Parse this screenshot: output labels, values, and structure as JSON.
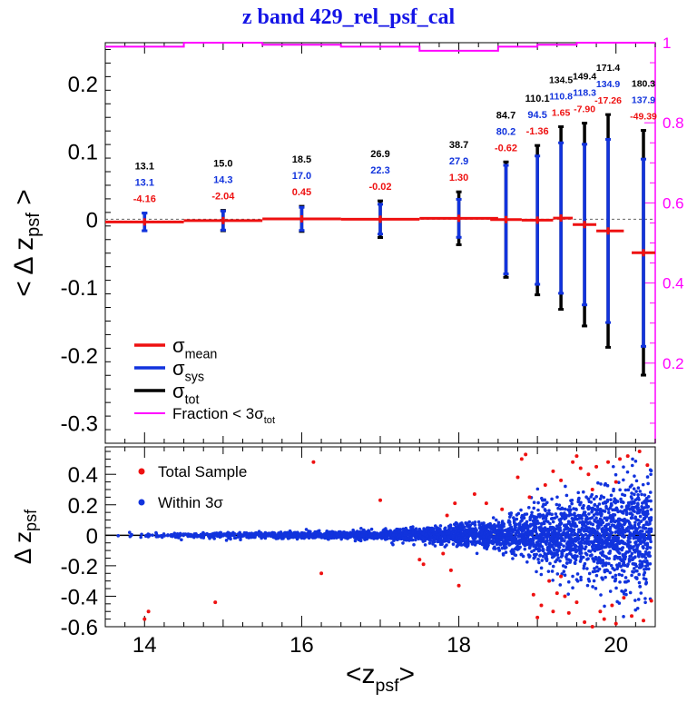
{
  "title": "z band 429_rel_psf_cal",
  "colors": {
    "mean": "#ee1111",
    "sys": "#1133dd",
    "tot": "#000000",
    "fraction": "#ff00ff",
    "title": "#1414e6"
  },
  "chart_data": [
    {
      "type": "errorbar",
      "panel": "top",
      "ylabel": {
        "main": "< Δ z",
        "sub": "psf",
        "tail": " >"
      },
      "xlim": [
        13.5,
        20.5
      ],
      "ylim": [
        -0.33,
        0.26
      ],
      "yticks": [
        0.2,
        0.1,
        0,
        -0.1,
        -0.2,
        -0.3
      ],
      "ytick_labels": [
        "0.2",
        "0.1",
        "0",
        "-0.1",
        "-0.2",
        "-0.3"
      ],
      "right_axis": {
        "ylim": [
          0,
          1
        ],
        "ticks": [
          0.2,
          0.4,
          0.6,
          0.8,
          1.0
        ],
        "tick_labels": [
          "0.2",
          "0.4",
          "0.6",
          "0.8",
          "1"
        ]
      },
      "bins": [
        {
          "x": 14.0,
          "xlo": 13.5,
          "xhi": 14.5,
          "y": -0.004,
          "sigma_tot": 0.013,
          "sigma_sys": 0.013,
          "labels": [
            "13.1",
            "13.1",
            "-4.16"
          ]
        },
        {
          "x": 15.0,
          "xlo": 14.5,
          "xhi": 15.5,
          "y": -0.002,
          "sigma_tot": 0.015,
          "sigma_sys": 0.014,
          "labels": [
            "15.0",
            "14.3",
            "-2.04"
          ]
        },
        {
          "x": 16.0,
          "xlo": 15.5,
          "xhi": 16.5,
          "y": 0.0005,
          "sigma_tot": 0.0185,
          "sigma_sys": 0.017,
          "labels": [
            "18.5",
            "17.0",
            "0.45"
          ]
        },
        {
          "x": 17.0,
          "xlo": 16.5,
          "xhi": 17.5,
          "y": 0.0,
          "sigma_tot": 0.027,
          "sigma_sys": 0.022,
          "labels": [
            "26.9",
            "22.3",
            "-0.02"
          ]
        },
        {
          "x": 18.0,
          "xlo": 17.5,
          "xhi": 18.5,
          "y": 0.0013,
          "sigma_tot": 0.039,
          "sigma_sys": 0.028,
          "labels": [
            "38.7",
            "27.9",
            "1.30"
          ]
        },
        {
          "x": 18.6,
          "xlo": 18.4,
          "xhi": 18.8,
          "y": -0.0006,
          "sigma_tot": 0.085,
          "sigma_sys": 0.08,
          "labels": [
            "84.7",
            "80.2",
            "-0.62"
          ]
        },
        {
          "x": 19.0,
          "xlo": 18.8,
          "xhi": 19.2,
          "y": -0.0014,
          "sigma_tot": 0.11,
          "sigma_sys": 0.0945,
          "labels": [
            "110.1",
            "94.5",
            "-1.36"
          ]
        },
        {
          "x": 19.3,
          "xlo": 19.2,
          "xhi": 19.45,
          "y": 0.0017,
          "sigma_tot": 0.1345,
          "sigma_sys": 0.1108,
          "labels": [
            "134.5",
            "110.8",
            "1.65"
          ]
        },
        {
          "x": 19.6,
          "xlo": 19.45,
          "xhi": 19.75,
          "y": -0.0079,
          "sigma_tot": 0.1494,
          "sigma_sys": 0.1183,
          "labels": [
            "149.4",
            "118.3",
            "-7.90"
          ]
        },
        {
          "x": 19.9,
          "xlo": 19.75,
          "xhi": 20.1,
          "y": -0.0173,
          "sigma_tot": 0.1714,
          "sigma_sys": 0.1349,
          "labels": [
            "171.4",
            "134.9",
            "-17.26"
          ]
        },
        {
          "x": 20.35,
          "xlo": 20.2,
          "xhi": 20.5,
          "y": -0.0494,
          "sigma_tot": 0.1803,
          "sigma_sys": 0.1379,
          "labels": [
            "180.3",
            "137.9",
            "-49.39"
          ]
        }
      ],
      "fraction_series": {
        "name": "Fraction < 3σtot",
        "steps": [
          {
            "xlo": 13.5,
            "xhi": 14.5,
            "y": 0.99
          },
          {
            "xlo": 14.5,
            "xhi": 15.5,
            "y": 1.0
          },
          {
            "xlo": 15.5,
            "xhi": 16.5,
            "y": 0.995
          },
          {
            "xlo": 16.5,
            "xhi": 17.5,
            "y": 0.99
          },
          {
            "xlo": 17.5,
            "xhi": 18.5,
            "y": 0.98
          },
          {
            "xlo": 18.5,
            "xhi": 19.0,
            "y": 0.99
          },
          {
            "xlo": 19.0,
            "xhi": 19.5,
            "y": 0.995
          },
          {
            "xlo": 19.5,
            "xhi": 20.0,
            "y": 1.0
          },
          {
            "xlo": 20.0,
            "xhi": 20.5,
            "y": 1.0
          }
        ]
      },
      "legend": [
        {
          "symbol": "σ",
          "sub": "mean",
          "text": "",
          "color": "#ee1111"
        },
        {
          "symbol": "σ",
          "sub": "sys",
          "text": "",
          "color": "#1133dd"
        },
        {
          "symbol": "σ",
          "sub": "tot",
          "text": "",
          "color": "#000000"
        },
        {
          "symbol": "",
          "sub": "tot",
          "text": "Fraction < 3σ",
          "color": "#ff00ff"
        }
      ]
    },
    {
      "type": "scatter",
      "panel": "bottom",
      "ylabel": {
        "main": "Δ z",
        "sub": "psf"
      },
      "xlabel": {
        "main": "<z",
        "sub": "psf",
        "tail": ">"
      },
      "xlim": [
        13.5,
        20.5
      ],
      "ylim": [
        -0.6,
        0.58
      ],
      "xticks": [
        14,
        16,
        18,
        20
      ],
      "xtick_labels": [
        "14",
        "16",
        "18",
        "20"
      ],
      "yticks": [
        0.4,
        0.2,
        0,
        -0.2,
        -0.4,
        -0.6
      ],
      "ytick_labels": [
        "0.4",
        "0.2",
        "0",
        "-0.2",
        "-0.4",
        "-0.6"
      ],
      "series": [
        {
          "name": "Total Sample",
          "color": "#ee1111"
        },
        {
          "name": "Within 3σ",
          "color": "#1133dd"
        }
      ],
      "outliers": [
        [
          14.05,
          -0.5
        ],
        [
          14.0,
          -0.55
        ],
        [
          14.9,
          -0.44
        ],
        [
          16.15,
          0.48
        ],
        [
          16.25,
          -0.25
        ],
        [
          17.0,
          0.23
        ],
        [
          17.5,
          -0.16
        ],
        [
          17.55,
          -0.19
        ],
        [
          17.8,
          -0.12
        ],
        [
          17.85,
          0.13
        ],
        [
          17.9,
          -0.23
        ],
        [
          18.0,
          -0.33
        ],
        [
          17.95,
          0.21
        ],
        [
          18.2,
          0.27
        ],
        [
          18.35,
          0.21
        ],
        [
          18.55,
          0.17
        ],
        [
          18.75,
          0.38
        ],
        [
          18.8,
          0.5
        ],
        [
          18.85,
          0.53
        ],
        [
          18.9,
          0.25
        ],
        [
          18.95,
          -0.39
        ],
        [
          19.0,
          -0.54
        ],
        [
          19.05,
          -0.46
        ],
        [
          19.1,
          0.33
        ],
        [
          19.15,
          -0.3
        ],
        [
          19.2,
          0.42
        ],
        [
          19.25,
          -0.38
        ],
        [
          19.3,
          0.36
        ],
        [
          19.35,
          -0.4
        ],
        [
          19.4,
          -0.51
        ],
        [
          19.45,
          0.48
        ],
        [
          19.5,
          -0.44
        ],
        [
          19.55,
          0.44
        ],
        [
          19.6,
          -0.57
        ],
        [
          19.65,
          0.4
        ],
        [
          19.7,
          -0.6
        ],
        [
          19.75,
          0.45
        ],
        [
          19.8,
          -0.5
        ],
        [
          19.85,
          -0.55
        ],
        [
          19.9,
          0.48
        ],
        [
          19.95,
          -0.46
        ],
        [
          20.0,
          -0.58
        ],
        [
          20.05,
          0.5
        ],
        [
          20.1,
          -0.41
        ],
        [
          20.15,
          0.52
        ],
        [
          20.2,
          -0.53
        ],
        [
          20.3,
          0.55
        ],
        [
          20.35,
          -0.56
        ],
        [
          20.4,
          0.46
        ],
        [
          20.45,
          -0.43
        ],
        [
          19.2,
          -0.5
        ],
        [
          19.5,
          0.52
        ],
        [
          19.7,
          0.3
        ],
        [
          20.0,
          0.35
        ],
        [
          19.3,
          -0.27
        ]
      ]
    }
  ]
}
